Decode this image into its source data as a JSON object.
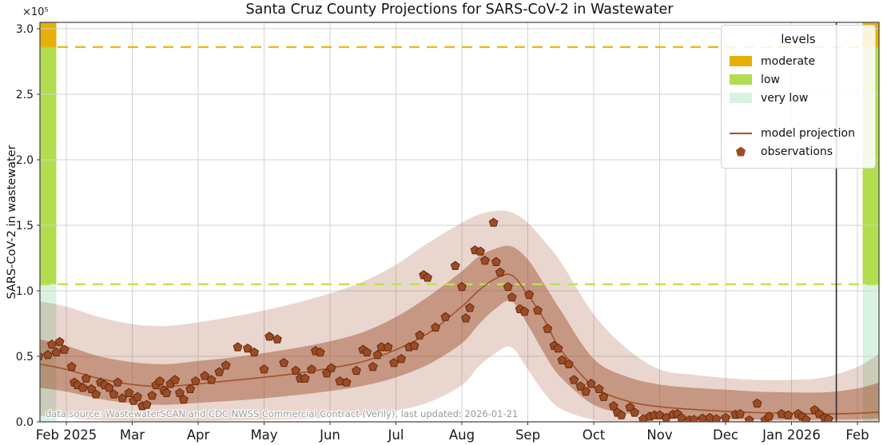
{
  "title": "Santa Cruz County Projections for SARS-CoV-2 in Wastewater",
  "axes": {
    "y_label": "SARS-CoV-2 in wastewater",
    "y_offset_label": "×10⁵"
  },
  "legend": {
    "title": "levels",
    "items": [
      {
        "label": "moderate",
        "key": "moderate"
      },
      {
        "label": "low",
        "key": "low"
      },
      {
        "label": "very low",
        "key": "very_low"
      },
      {
        "label": "model projection",
        "key": "model"
      },
      {
        "label": "observations",
        "key": "observations"
      }
    ]
  },
  "annotations": {
    "data_source": "data source: WastewaterSCAN and CDC NWSS Commercial Contract (Verily), last updated: 2026-01-21"
  },
  "colors": {
    "moderate": "#e6b008",
    "low": "#b2dd4f",
    "very_low": "#d9f3e2",
    "moderate_dash": "#efb810",
    "low_dash": "#bbe44f",
    "model": "#a3512b",
    "band": "#9c4a26",
    "observation_fill": "#9c4b24",
    "observation_edge": "#63290f",
    "today_line": "#2d2d2d",
    "grid": "#d3d3d3",
    "spine": "#4d4d4d",
    "tick_text": "#1a1a1a"
  },
  "chart_data": {
    "type": "line",
    "title": "Santa Cruz County Projections for SARS-CoV-2 in Wastewater",
    "xlabel": "",
    "ylabel": "SARS-CoV-2 in wastewater",
    "y_scale_note": "values in units of 1e5",
    "x_unit": "months after 2025-02-01",
    "x_domain": [
      -0.4,
      12.33
    ],
    "y_domain": [
      0,
      3.05
    ],
    "grid": true,
    "legend_position": "upper right",
    "x_tick_positions": [
      0,
      1,
      2,
      3,
      4,
      5,
      6,
      7,
      8,
      9,
      10,
      11,
      12
    ],
    "x_tick_labels": [
      "Feb 2025",
      "Mar",
      "Apr",
      "May",
      "Jun",
      "Jul",
      "Aug",
      "Sep",
      "Oct",
      "Nov",
      "Dec",
      "Jan 2026",
      "Feb"
    ],
    "y_ticks": [
      0,
      0.5,
      1,
      1.5,
      2,
      2.5,
      3
    ],
    "levels": [
      {
        "key": "moderate",
        "label": "moderate",
        "from": 2.86,
        "to": 3.05
      },
      {
        "key": "low",
        "label": "low",
        "from": 1.05,
        "to": 2.86
      },
      {
        "key": "very_low",
        "label": "very low",
        "from": 0,
        "to": 1.05
      }
    ],
    "thresholds": [
      {
        "key": "moderate",
        "value": 2.86
      },
      {
        "key": "low",
        "value": 1.05
      }
    ],
    "today_line_x": 11.68,
    "curves": {
      "x": [
        -0.4,
        0,
        0.5,
        1,
        1.5,
        2,
        2.5,
        3,
        3.5,
        4,
        4.5,
        5,
        5.5,
        6,
        6.25,
        6.5,
        6.75,
        7,
        7.25,
        7.5,
        8,
        8.5,
        9,
        9.5,
        10,
        10.5,
        11,
        11.5,
        12,
        12.33
      ],
      "model": [
        0.44,
        0.4,
        0.33,
        0.285,
        0.27,
        0.29,
        0.315,
        0.34,
        0.37,
        0.41,
        0.46,
        0.55,
        0.68,
        0.88,
        1.0,
        1.09,
        1.12,
        0.97,
        0.78,
        0.55,
        0.27,
        0.16,
        0.115,
        0.095,
        0.08,
        0.07,
        0.065,
        0.06,
        0.065,
        0.075
      ],
      "inner_lo": [
        0.26,
        0.23,
        0.175,
        0.14,
        0.13,
        0.145,
        0.16,
        0.18,
        0.205,
        0.235,
        0.275,
        0.34,
        0.44,
        0.6,
        0.74,
        0.86,
        0.92,
        0.74,
        0.52,
        0.34,
        0.13,
        0.065,
        0.04,
        0.028,
        0.022,
        0.018,
        0.015,
        0.015,
        0.018,
        0.025
      ],
      "inner_hi": [
        0.63,
        0.58,
        0.5,
        0.455,
        0.44,
        0.465,
        0.49,
        0.525,
        0.565,
        0.615,
        0.685,
        0.8,
        0.96,
        1.15,
        1.26,
        1.32,
        1.34,
        1.24,
        1.05,
        0.85,
        0.48,
        0.345,
        0.285,
        0.26,
        0.245,
        0.23,
        0.225,
        0.225,
        0.255,
        0.3
      ],
      "outer_lo": [
        0.045,
        0.032,
        0.012,
        0.006,
        0.005,
        0.007,
        0.01,
        0.016,
        0.022,
        0.032,
        0.05,
        0.085,
        0.15,
        0.28,
        0.42,
        0.52,
        0.57,
        0.4,
        0.22,
        0.1,
        0.015,
        0.004,
        0.002,
        0.001,
        0.001,
        0.001,
        0.001,
        0.001,
        0.001,
        0.002
      ],
      "outer_hi": [
        0.92,
        0.88,
        0.8,
        0.745,
        0.73,
        0.76,
        0.8,
        0.85,
        0.91,
        0.98,
        1.07,
        1.2,
        1.37,
        1.52,
        1.58,
        1.61,
        1.6,
        1.52,
        1.38,
        1.22,
        0.82,
        0.56,
        0.4,
        0.36,
        0.335,
        0.32,
        0.32,
        0.34,
        0.42,
        0.52
      ]
    },
    "observations": [
      [
        -0.42,
        0.5
      ],
      [
        -0.28,
        0.51
      ],
      [
        -0.22,
        0.59
      ],
      [
        -0.15,
        0.53
      ],
      [
        -0.1,
        0.61
      ],
      [
        -0.03,
        0.55
      ],
      [
        0.08,
        0.42
      ],
      [
        0.12,
        0.3
      ],
      [
        0.17,
        0.28
      ],
      [
        0.25,
        0.26
      ],
      [
        0.3,
        0.33
      ],
      [
        0.38,
        0.25
      ],
      [
        0.45,
        0.21
      ],
      [
        0.52,
        0.3
      ],
      [
        0.58,
        0.28
      ],
      [
        0.65,
        0.26
      ],
      [
        0.72,
        0.21
      ],
      [
        0.78,
        0.3
      ],
      [
        0.85,
        0.18
      ],
      [
        0.95,
        0.22
      ],
      [
        1.02,
        0.16
      ],
      [
        1.08,
        0.19
      ],
      [
        1.15,
        0.12
      ],
      [
        1.22,
        0.13
      ],
      [
        1.3,
        0.2
      ],
      [
        1.36,
        0.28
      ],
      [
        1.42,
        0.31
      ],
      [
        1.48,
        0.24
      ],
      [
        1.52,
        0.22
      ],
      [
        1.58,
        0.29
      ],
      [
        1.65,
        0.32
      ],
      [
        1.72,
        0.22
      ],
      [
        1.78,
        0.17
      ],
      [
        1.88,
        0.25
      ],
      [
        1.96,
        0.31
      ],
      [
        2.1,
        0.35
      ],
      [
        2.2,
        0.32
      ],
      [
        2.32,
        0.38
      ],
      [
        2.42,
        0.43
      ],
      [
        2.6,
        0.57
      ],
      [
        2.75,
        0.56
      ],
      [
        2.85,
        0.53
      ],
      [
        3.0,
        0.4
      ],
      [
        3.08,
        0.65
      ],
      [
        3.2,
        0.63
      ],
      [
        3.3,
        0.45
      ],
      [
        3.48,
        0.39
      ],
      [
        3.55,
        0.33
      ],
      [
        3.62,
        0.33
      ],
      [
        3.72,
        0.4
      ],
      [
        3.78,
        0.54
      ],
      [
        3.85,
        0.53
      ],
      [
        3.95,
        0.37
      ],
      [
        4.02,
        0.41
      ],
      [
        4.15,
        0.31
      ],
      [
        4.25,
        0.3
      ],
      [
        4.4,
        0.39
      ],
      [
        4.5,
        0.55
      ],
      [
        4.56,
        0.53
      ],
      [
        4.65,
        0.42
      ],
      [
        4.72,
        0.51
      ],
      [
        4.78,
        0.57
      ],
      [
        4.88,
        0.57
      ],
      [
        4.97,
        0.45
      ],
      [
        5.08,
        0.48
      ],
      [
        5.2,
        0.57
      ],
      [
        5.28,
        0.58
      ],
      [
        5.36,
        0.66
      ],
      [
        5.42,
        1.12
      ],
      [
        5.48,
        1.1
      ],
      [
        5.6,
        0.72
      ],
      [
        5.75,
        0.8
      ],
      [
        5.9,
        1.19
      ],
      [
        6.0,
        1.03
      ],
      [
        6.06,
        0.79
      ],
      [
        6.12,
        0.87
      ],
      [
        6.2,
        1.31
      ],
      [
        6.28,
        1.3
      ],
      [
        6.35,
        1.23
      ],
      [
        6.48,
        1.52
      ],
      [
        6.52,
        1.22
      ],
      [
        6.58,
        1.14
      ],
      [
        6.7,
        1.03
      ],
      [
        6.76,
        0.95
      ],
      [
        6.88,
        0.86
      ],
      [
        6.95,
        0.84
      ],
      [
        7.02,
        0.97
      ],
      [
        7.15,
        0.85
      ],
      [
        7.3,
        0.71
      ],
      [
        7.4,
        0.58
      ],
      [
        7.46,
        0.56
      ],
      [
        7.52,
        0.47
      ],
      [
        7.62,
        0.44
      ],
      [
        7.7,
        0.32
      ],
      [
        7.8,
        0.27
      ],
      [
        7.88,
        0.23
      ],
      [
        7.96,
        0.29
      ],
      [
        8.08,
        0.25
      ],
      [
        8.15,
        0.19
      ],
      [
        8.3,
        0.12
      ],
      [
        8.36,
        0.07
      ],
      [
        8.42,
        0.05
      ],
      [
        8.55,
        0.11
      ],
      [
        8.62,
        0.07
      ],
      [
        8.75,
        0.02
      ],
      [
        8.85,
        0.04
      ],
      [
        8.92,
        0.05
      ],
      [
        9.0,
        0.05
      ],
      [
        9.1,
        0.03
      ],
      [
        9.2,
        0.055
      ],
      [
        9.27,
        0.06
      ],
      [
        9.33,
        0.03
      ],
      [
        9.45,
        0.012
      ],
      [
        9.52,
        0.015
      ],
      [
        9.65,
        0.025
      ],
      [
        9.76,
        0.03
      ],
      [
        9.86,
        0.02
      ],
      [
        10.0,
        0.03
      ],
      [
        10.15,
        0.055
      ],
      [
        10.22,
        0.06
      ],
      [
        10.36,
        0.012
      ],
      [
        10.48,
        0.14
      ],
      [
        10.6,
        0.012
      ],
      [
        10.66,
        0.04
      ],
      [
        10.85,
        0.06
      ],
      [
        10.95,
        0.05
      ],
      [
        11.1,
        0.06
      ],
      [
        11.16,
        0.04
      ],
      [
        11.22,
        0.015
      ],
      [
        11.35,
        0.09
      ],
      [
        11.42,
        0.06
      ],
      [
        11.5,
        0.03
      ],
      [
        11.56,
        0.02
      ]
    ]
  }
}
